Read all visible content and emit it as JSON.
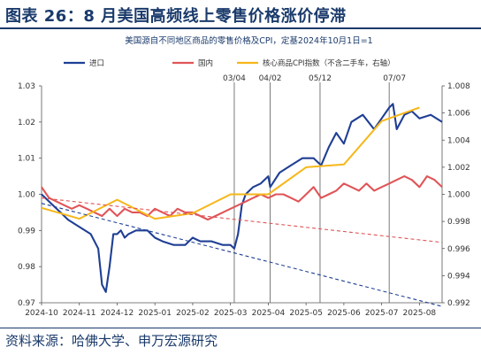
{
  "figure": {
    "title": "图表 26：8 月美国高频线上零售价格涨价停滞",
    "source": "资料来源：哈佛大学、申万宏源研究"
  },
  "chart_data": {
    "type": "line",
    "title": "美国源自不同地区商品的零售价格及CPI，定基2024年10月1日=1",
    "x_ticks": [
      "2024-10",
      "2024-11",
      "2024-12",
      "2025-01",
      "2025-02",
      "2025-03",
      "2025-04",
      "2025-05",
      "2025-06",
      "2025-07",
      "2025-08"
    ],
    "y_left": {
      "lim": [
        0.97,
        1.03
      ],
      "ticks": [
        "0.97",
        "0.98",
        "0.99",
        "1.00",
        "1.01",
        "1.02",
        "1.03"
      ]
    },
    "y_right": {
      "lim": [
        0.992,
        1.008
      ],
      "ticks": [
        "0.992",
        "0.994",
        "0.996",
        "0.998",
        "1.000",
        "1.002",
        "1.004",
        "1.006",
        "1.008"
      ]
    },
    "vlines": [
      {
        "label": "03/04",
        "x": 5.1
      },
      {
        "label": "04/02",
        "x": 6.05
      },
      {
        "label": "05/12",
        "x": 7.37
      },
      {
        "label": "07/07",
        "x": 9.2
      }
    ],
    "legend": {
      "placement": "top"
    },
    "series": [
      {
        "name": "进口",
        "color": "#1f3f94",
        "axis": "left",
        "x": [
          0,
          0.3,
          0.5,
          0.7,
          1.0,
          1.3,
          1.5,
          1.6,
          1.7,
          1.8,
          1.9,
          2.0,
          2.1,
          2.2,
          2.3,
          2.5,
          2.8,
          3.0,
          3.2,
          3.5,
          3.8,
          4.0,
          4.2,
          4.5,
          4.8,
          5.0,
          5.1,
          5.2,
          5.3,
          5.4,
          5.6,
          5.8,
          6.0,
          6.05,
          6.3,
          6.6,
          6.9,
          7.2,
          7.4,
          7.6,
          7.8,
          8.0,
          8.2,
          8.5,
          8.8,
          9.0,
          9.2,
          9.3,
          9.4,
          9.6,
          9.8,
          10.0,
          10.3,
          10.6
        ],
        "y": [
          1.0,
          0.997,
          0.995,
          0.993,
          0.991,
          0.989,
          0.985,
          0.975,
          0.973,
          0.98,
          0.989,
          0.989,
          0.99,
          0.988,
          0.989,
          0.99,
          0.99,
          0.988,
          0.987,
          0.986,
          0.986,
          0.988,
          0.987,
          0.987,
          0.986,
          0.986,
          0.985,
          0.989,
          0.997,
          1.0,
          1.002,
          1.003,
          1.005,
          1.002,
          1.006,
          1.008,
          1.01,
          1.01,
          1.008,
          1.013,
          1.017,
          1.014,
          1.02,
          1.022,
          1.018,
          1.021,
          1.024,
          1.025,
          1.018,
          1.022,
          1.023,
          1.021,
          1.022,
          1.02
        ]
      },
      {
        "name": "国内",
        "color": "#e05558",
        "axis": "left",
        "x": [
          0,
          0.2,
          0.4,
          0.6,
          0.8,
          1.0,
          1.2,
          1.4,
          1.6,
          1.8,
          2.0,
          2.2,
          2.4,
          2.6,
          2.8,
          3.0,
          3.2,
          3.4,
          3.6,
          3.8,
          4.0,
          4.2,
          4.4,
          4.6,
          4.8,
          5.0,
          5.2,
          5.4,
          5.6,
          5.8,
          6.0,
          6.2,
          6.4,
          6.6,
          6.8,
          7.0,
          7.2,
          7.4,
          7.6,
          7.8,
          8.0,
          8.2,
          8.4,
          8.6,
          8.8,
          9.0,
          9.2,
          9.4,
          9.6,
          9.8,
          10.0,
          10.2,
          10.4,
          10.6
        ],
        "y": [
          1.002,
          0.999,
          0.998,
          0.997,
          0.996,
          0.997,
          0.996,
          0.995,
          0.994,
          0.996,
          0.994,
          0.996,
          0.995,
          0.995,
          0.994,
          0.996,
          0.995,
          0.994,
          0.996,
          0.995,
          0.995,
          0.994,
          0.993,
          0.994,
          0.995,
          0.996,
          0.997,
          0.998,
          0.999,
          1.0,
          0.999,
          1.0,
          1.0,
          0.999,
          0.998,
          1.0,
          1.002,
          0.999,
          1.0,
          1.001,
          1.003,
          1.002,
          1.001,
          1.003,
          1.001,
          1.002,
          1.003,
          1.004,
          1.005,
          1.004,
          1.002,
          1.005,
          1.004,
          1.002
        ]
      },
      {
        "name": "核心商品CPI指数（不含二手车，右轴）",
        "color": "#f6b71a",
        "axis": "right",
        "x": [
          0,
          1.0,
          2.0,
          3.0,
          4.0,
          5.0,
          6.0,
          7.0,
          8.0,
          9.0,
          10.0
        ],
        "y": [
          0.999,
          0.9982,
          0.9996,
          0.9982,
          0.9986,
          1.0,
          1.0,
          1.002,
          1.0022,
          1.0054,
          1.0064
        ]
      },
      {
        "name": "",
        "color": "#e05558",
        "axis": "left",
        "dashed": true,
        "x": [
          0,
          10.6
        ],
        "y": [
          0.999,
          0.9867
        ]
      },
      {
        "name": "",
        "color": "#1f3f94",
        "axis": "left",
        "dashed": true,
        "x": [
          0,
          10.6
        ],
        "y": [
          0.9975,
          0.969
        ]
      }
    ]
  }
}
